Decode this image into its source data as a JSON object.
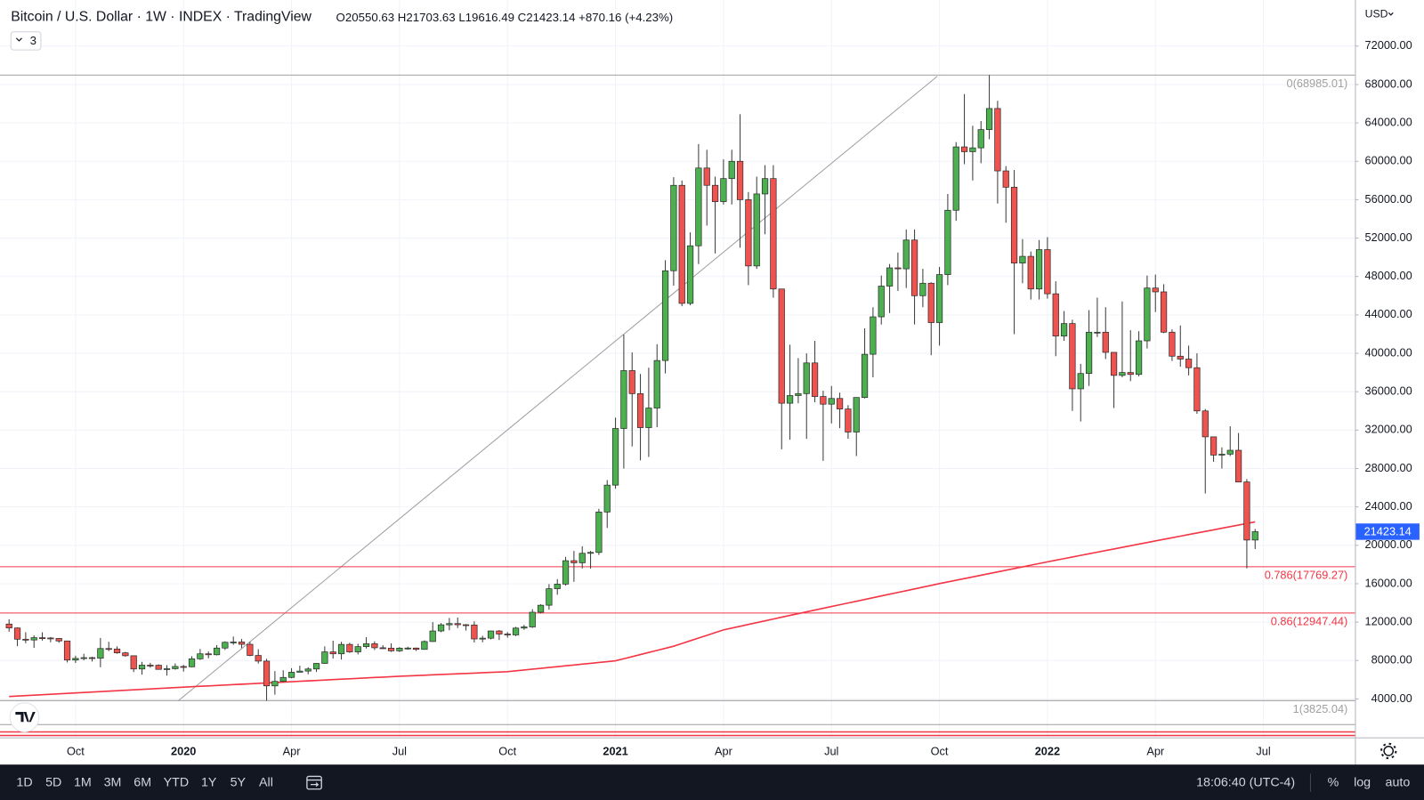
{
  "chart_data": {
    "type": "candlestick",
    "title": "Bitcoin / U.S. Dollar · 1W · INDEX · TradingView",
    "ohlc_text": "O20550.63 H21703.63 L19616.49 C21423.14 +870.16 (+4.23%)",
    "indicator_count": "3",
    "currency": "USD",
    "up_color": "#4caf50",
    "down_color": "#ef5350",
    "grid": true,
    "ylim": [
      0,
      76800
    ],
    "yticks": [
      {
        "value": 4000,
        "label": "4000.00"
      },
      {
        "value": 8000,
        "label": "8000.00"
      },
      {
        "value": 12000,
        "label": "12000.00"
      },
      {
        "value": 16000,
        "label": "16000.00"
      },
      {
        "value": 20000,
        "label": "20000.00"
      },
      {
        "value": 24000,
        "label": "24000.00"
      },
      {
        "value": 28000,
        "label": "28000.00"
      },
      {
        "value": 32000,
        "label": "32000.00"
      },
      {
        "value": 36000,
        "label": "36000.00"
      },
      {
        "value": 40000,
        "label": "40000.00"
      },
      {
        "value": 44000,
        "label": "44000.00"
      },
      {
        "value": 48000,
        "label": "48000.00"
      },
      {
        "value": 52000,
        "label": "52000.00"
      },
      {
        "value": 56000,
        "label": "56000.00"
      },
      {
        "value": 60000,
        "label": "60000.00"
      },
      {
        "value": 64000,
        "label": "64000.00"
      },
      {
        "value": 68000,
        "label": "68000.00"
      },
      {
        "value": 72000,
        "label": "72000.00"
      }
    ],
    "categories": [
      null,
      null,
      null,
      null,
      null,
      null,
      null,
      null,
      "Oct",
      null,
      null,
      null,
      null,
      null,
      null,
      null,
      null,
      null,
      null,
      null,
      null,
      "2020",
      null,
      null,
      null,
      null,
      null,
      null,
      null,
      null,
      null,
      null,
      null,
      null,
      "Apr",
      null,
      null,
      null,
      null,
      null,
      null,
      null,
      null,
      null,
      null,
      null,
      null,
      "Jul",
      null,
      null,
      null,
      null,
      null,
      null,
      null,
      null,
      null,
      null,
      null,
      null,
      "Oct",
      null,
      null,
      null,
      null,
      null,
      null,
      null,
      null,
      null,
      null,
      null,
      null,
      "2021",
      null,
      null,
      null,
      null,
      null,
      null,
      null,
      null,
      null,
      null,
      null,
      null,
      "Apr",
      null,
      null,
      null,
      null,
      null,
      null,
      null,
      null,
      null,
      null,
      null,
      null,
      "Jul",
      null,
      null,
      null,
      null,
      null,
      null,
      null,
      null,
      null,
      null,
      null,
      null,
      "Oct",
      null,
      null,
      null,
      null,
      null,
      null,
      null,
      null,
      null,
      null,
      null,
      null,
      "2022",
      null,
      null,
      null,
      null,
      null,
      null,
      null,
      null,
      null,
      null,
      null,
      null,
      "Apr",
      null,
      null,
      null,
      null,
      null,
      null,
      null,
      null,
      null,
      null,
      null,
      null,
      "Jul"
    ],
    "open": [
      11800,
      11390,
      10220,
      10140,
      10380,
      10350,
      10300,
      10040,
      8050,
      8220,
      8300,
      8240,
      9250,
      9200,
      8800,
      8500,
      7120,
      7520,
      7510,
      7080,
      7150,
      7380,
      7350,
      8180,
      8700,
      8600,
      9300,
      9900,
      9930,
      9690,
      8530,
      7940,
      5360,
      5830,
      6240,
      6780,
      6900,
      7120,
      7700,
      8900,
      8700,
      9680,
      8900,
      9450,
      9750,
      9330,
      9290,
      9010,
      9290,
      9300,
      9160,
      9980,
      11080,
      11720,
      11850,
      11730,
      11700,
      10250,
      10330,
      11080,
      10760,
      10670,
      11380,
      11500,
      13030,
      13760,
      15480,
      15960,
      18400,
      18180,
      19170,
      19260,
      23470,
      26270,
      32170,
      38200,
      35800,
      32260,
      34300,
      39250,
      48600,
      57500,
      45200,
      51200,
      59300,
      57500,
      55800,
      58200,
      60000,
      56000,
      49100,
      56600,
      58200,
      46700,
      34800,
      35600,
      35800,
      39000,
      35500,
      34700,
      35300,
      34200,
      31800,
      35400,
      39900,
      43800,
      47000,
      48900,
      48800,
      51800,
      46000,
      47300,
      43200,
      48200,
      54900,
      61500,
      61000,
      61400,
      63300,
      65500,
      59000,
      57300,
      49400,
      50100,
      46700,
      50800,
      46200,
      41800,
      43100,
      36300,
      37900,
      42200,
      42200,
      40100,
      37700,
      38000,
      37800,
      41300,
      46800,
      46400,
      42200,
      39700,
      39400,
      38500,
      34000,
      31300,
      29400,
      29500,
      29900,
      26600,
      20550.63,
      null
    ],
    "high": [
      12300,
      11450,
      10950,
      10620,
      10940,
      10450,
      10350,
      10050,
      8500,
      8700,
      8400,
      10350,
      9950,
      9480,
      8900,
      8500,
      7860,
      7760,
      7600,
      7520,
      7700,
      7550,
      8450,
      9200,
      8940,
      9600,
      10000,
      10500,
      10240,
      9950,
      9180,
      8180,
      6900,
      6990,
      7200,
      7460,
      7300,
      7740,
      9480,
      10070,
      9950,
      9850,
      9750,
      10430,
      10000,
      9600,
      9790,
      9400,
      9440,
      9350,
      10100,
      12000,
      11900,
      12440,
      12480,
      11800,
      12080,
      10580,
      11100,
      11180,
      10970,
      11500,
      11720,
      13350,
      13860,
      15960,
      16480,
      18800,
      19420,
      19900,
      19420,
      23800,
      26800,
      33300,
      41950,
      40100,
      37850,
      38500,
      40950,
      49700,
      58350,
      58000,
      52600,
      61800,
      61200,
      58400,
      60200,
      61200,
      64900,
      56800,
      58400,
      59600,
      59600,
      46700,
      40900,
      39500,
      40000,
      41300,
      36100,
      36600,
      35900,
      34600,
      35400,
      42600,
      44800,
      48100,
      49300,
      50500,
      52900,
      52900,
      48800,
      47400,
      49000,
      56600,
      62000,
      67000,
      63700,
      64200,
      68985.01,
      66300,
      59500,
      59100,
      51900,
      50600,
      51800,
      52100,
      47500,
      44400,
      43500,
      38900,
      44500,
      45800,
      44800,
      40100,
      45400,
      42400,
      42300,
      48100,
      48200,
      47200,
      42500,
      42900,
      40800,
      40000,
      34200,
      31300,
      30200,
      32400,
      31700,
      26900,
      21703.63,
      null
    ],
    "low": [
      11000,
      9500,
      9800,
      9320,
      10080,
      9900,
      9850,
      7800,
      7750,
      8020,
      7900,
      7300,
      8980,
      8700,
      8400,
      6800,
      6530,
      7250,
      7050,
      6430,
      7050,
      6850,
      7300,
      8070,
      8230,
      8530,
      9100,
      9640,
      9300,
      8450,
      7680,
      3825.04,
      4450,
      5780,
      6150,
      6780,
      6570,
      6810,
      7660,
      8200,
      8100,
      8800,
      8640,
      9250,
      9100,
      9180,
      8900,
      8900,
      9130,
      9000,
      9130,
      9950,
      10950,
      11150,
      11380,
      11120,
      9880,
      9900,
      10200,
      10140,
      10380,
      10550,
      11200,
      11400,
      12900,
      13300,
      14850,
      15800,
      16200,
      17600,
      17580,
      19000,
      21800,
      25900,
      28000,
      30300,
      28850,
      29200,
      32300,
      37900,
      47050,
      44900,
      45000,
      49300,
      53300,
      50400,
      55500,
      55500,
      51000,
      47100,
      48800,
      52400,
      45800,
      30000,
      31000,
      34800,
      31100,
      34900,
      28800,
      32700,
      32200,
      31100,
      29300,
      35300,
      37500,
      43000,
      44200,
      46500,
      46800,
      43000,
      44800,
      39800,
      40800,
      47100,
      53800,
      59700,
      58000,
      59800,
      62300,
      55600,
      53600,
      42000,
      47300,
      45600,
      45600,
      45700,
      39700,
      41300,
      34000,
      32900,
      36600,
      41700,
      39400,
      34300,
      37500,
      37100,
      37600,
      40500,
      44300,
      42100,
      39200,
      38600,
      37700,
      33700,
      25400,
      28700,
      28000,
      29300,
      26600,
      17600,
      19616.49,
      null
    ],
    "close": [
      11390,
      10220,
      10140,
      10380,
      10350,
      10300,
      10040,
      8050,
      8220,
      8300,
      8240,
      9250,
      9200,
      8800,
      8500,
      7120,
      7520,
      7510,
      7080,
      7150,
      7380,
      7350,
      8180,
      8700,
      8600,
      9300,
      9900,
      9930,
      9690,
      8530,
      7940,
      5360,
      5830,
      6240,
      6780,
      6900,
      7120,
      7700,
      8900,
      8700,
      9680,
      8900,
      9450,
      9750,
      9330,
      9290,
      9010,
      9290,
      9300,
      9160,
      9980,
      11080,
      11720,
      11850,
      11730,
      11700,
      10250,
      10330,
      11080,
      10760,
      10670,
      11380,
      11500,
      13030,
      13760,
      15480,
      15960,
      18400,
      18180,
      19170,
      19260,
      23470,
      26270,
      32170,
      38200,
      35800,
      32260,
      34300,
      39250,
      48600,
      57500,
      45200,
      51200,
      59300,
      57500,
      55800,
      58200,
      60000,
      56000,
      49100,
      56600,
      58200,
      46700,
      34800,
      35600,
      35800,
      39000,
      35500,
      34700,
      35300,
      34200,
      31800,
      35400,
      39900,
      43800,
      47000,
      48900,
      48800,
      51800,
      46000,
      47300,
      43200,
      48200,
      54900,
      61500,
      61000,
      61400,
      63300,
      65500,
      59000,
      57300,
      49400,
      50100,
      46700,
      50800,
      46200,
      41800,
      43100,
      36300,
      37900,
      42200,
      42200,
      40100,
      37700,
      38000,
      37800,
      41300,
      46800,
      46400,
      42200,
      39700,
      39400,
      38500,
      34000,
      31300,
      29400,
      29500,
      29900,
      26600,
      20550.63,
      21423.14,
      null
    ],
    "ma": {
      "color": "#f23645",
      "values": [
        4250,
        4297,
        4343,
        4390,
        4437,
        4483,
        4530,
        4577,
        4623,
        4670,
        4717,
        4763,
        4810,
        4857,
        4903,
        4950,
        4997,
        5043,
        5090,
        5137,
        5183,
        5230,
        5273,
        5317,
        5360,
        5404,
        5447,
        5491,
        5534,
        5578,
        5621,
        5665,
        5708,
        5752,
        5795,
        5839,
        5882,
        5926,
        5969,
        6013,
        6056,
        6100,
        6143,
        6187,
        6230,
        6274,
        6317,
        6360,
        6397,
        6434,
        6471,
        6508,
        6545,
        6582,
        6618,
        6655,
        6692,
        6729,
        6766,
        6803,
        6840,
        6927,
        7014,
        7101,
        7188,
        7275,
        7362,
        7449,
        7536,
        7623,
        7710,
        7797,
        7884,
        7970,
        8187,
        8404,
        8621,
        8839,
        9056,
        9273,
        9490,
        9773,
        10057,
        10340,
        10623,
        10907,
        11190,
        11379,
        11568,
        11757,
        11946,
        12134,
        12323,
        12512,
        12701,
        12890,
        13074,
        13257,
        13441,
        13624,
        13808,
        13991,
        14175,
        14358,
        14542,
        14725,
        14909,
        15092,
        15276,
        15459,
        15643,
        15826,
        16010,
        16185,
        16359,
        16534,
        16708,
        16883,
        17058,
        17232,
        17407,
        17582,
        17756,
        17931,
        18105,
        18280,
        18448,
        18615,
        18783,
        18951,
        19118,
        19286,
        19454,
        19622,
        19789,
        19957,
        20125,
        20292,
        20460,
        20625,
        20790,
        20955,
        21120,
        21285,
        21450,
        21615,
        21780,
        21945,
        22110,
        22275,
        22440,
        null
      ]
    },
    "fib_levels": [
      {
        "value": 68985.01,
        "label": "0(68985.01)",
        "color": "#a0a0a0"
      },
      {
        "value": 17769.27,
        "label": "0.786(17769.27)",
        "color": "#f23645"
      },
      {
        "value": 12947.44,
        "label": "0.86(12947.44)",
        "color": "#f23645"
      },
      {
        "value": 3825.04,
        "label": "1(3825.04)",
        "color": "#a0a0a0"
      }
    ],
    "last_price": {
      "value": 21423.14,
      "label": "21423.14",
      "color": "#2962ff"
    }
  },
  "toolbar": {
    "ranges": [
      "1D",
      "5D",
      "1M",
      "3M",
      "6M",
      "YTD",
      "1Y",
      "5Y",
      "All"
    ],
    "clock": "18:06:40 (UTC-4)",
    "options": [
      "%",
      "log",
      "auto"
    ]
  }
}
